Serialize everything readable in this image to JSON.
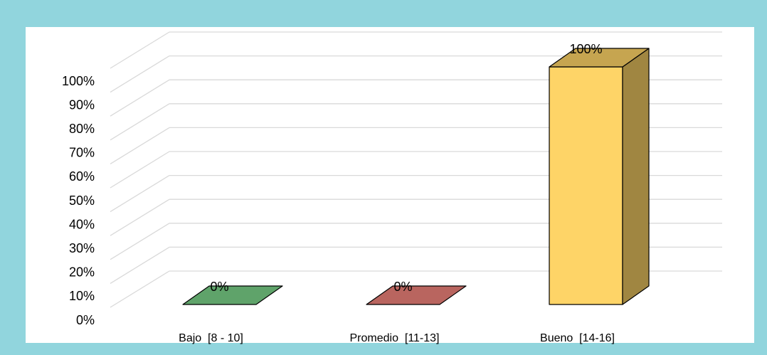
{
  "chart_data": {
    "type": "bar3d",
    "categories": [
      "Bajo  [8 - 10]",
      "Promedio  [11-13]",
      "Bueno  [14-16]"
    ],
    "values": [
      0,
      0,
      100
    ],
    "value_labels": [
      "0%",
      "0%",
      "100%"
    ],
    "colors": [
      "#5fa36a",
      "#b9655f",
      "#fed467"
    ],
    "ylim": [
      0,
      100
    ],
    "yticks": [
      {
        "value": 0,
        "label": "0%"
      },
      {
        "value": 10,
        "label": "10%"
      },
      {
        "value": 20,
        "label": "20%"
      },
      {
        "value": 30,
        "label": "30%"
      },
      {
        "value": 40,
        "label": "40%"
      },
      {
        "value": 50,
        "label": "50%"
      },
      {
        "value": 60,
        "label": "60%"
      },
      {
        "value": 70,
        "label": "70%"
      },
      {
        "value": 80,
        "label": "80%"
      },
      {
        "value": 90,
        "label": "90%"
      },
      {
        "value": 100,
        "label": "100%"
      }
    ],
    "grid": true
  }
}
